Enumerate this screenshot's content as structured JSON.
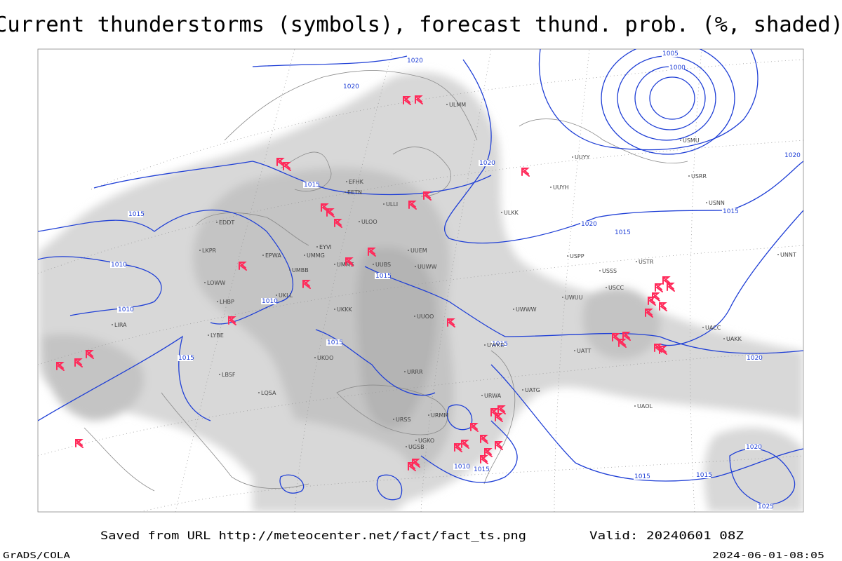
{
  "header": {
    "title": "Current thunderstorms (symbols), forecast thund. prob. (%, shaded)"
  },
  "isobar_labels": [
    "1005",
    "1000",
    "1020",
    "1020",
    "1020",
    "1020",
    "1015",
    "1015",
    "1020",
    "1015",
    "1015",
    "1010",
    "1015",
    "1010",
    "1010",
    "1015",
    "1015",
    "1015",
    "1020",
    "1020",
    "1015",
    "1015",
    "1015",
    "1010",
    "1025"
  ],
  "station_labels": [
    "ULMM",
    "EFHK",
    "EETN",
    "ULLI",
    "ULOO",
    "EDDT",
    "EPWA",
    "UMMG",
    "EYVI",
    "UMMS",
    "UMBB",
    "UUBS",
    "UUEM",
    "UUWW",
    "UKLL",
    "UKKK",
    "UUOO",
    "LKPR",
    "LOWW",
    "LHBP",
    "LIRA",
    "LYBE",
    "LBSF",
    "LQSA",
    "UKOO",
    "URWA",
    "URRR",
    "URMM",
    "URSS",
    "UGKO",
    "UGSB",
    "USCC",
    "USSS",
    "UWUU",
    "UWWW",
    "UWKD",
    "UATT",
    "UACC",
    "UAKK",
    "USRR",
    "USNN",
    "USMU",
    "UUYY",
    "ULKK",
    "UUYH",
    "USPP",
    "USTR",
    "UNNT",
    "UATG",
    "UAOL"
  ],
  "footer": {
    "saved": "Saved from URL http://meteocenter.net/fact/fact_ts.png",
    "valid": "Valid: 20240601 08Z",
    "left": "GrADS/COLA",
    "right": "2024-06-01-08:05"
  }
}
